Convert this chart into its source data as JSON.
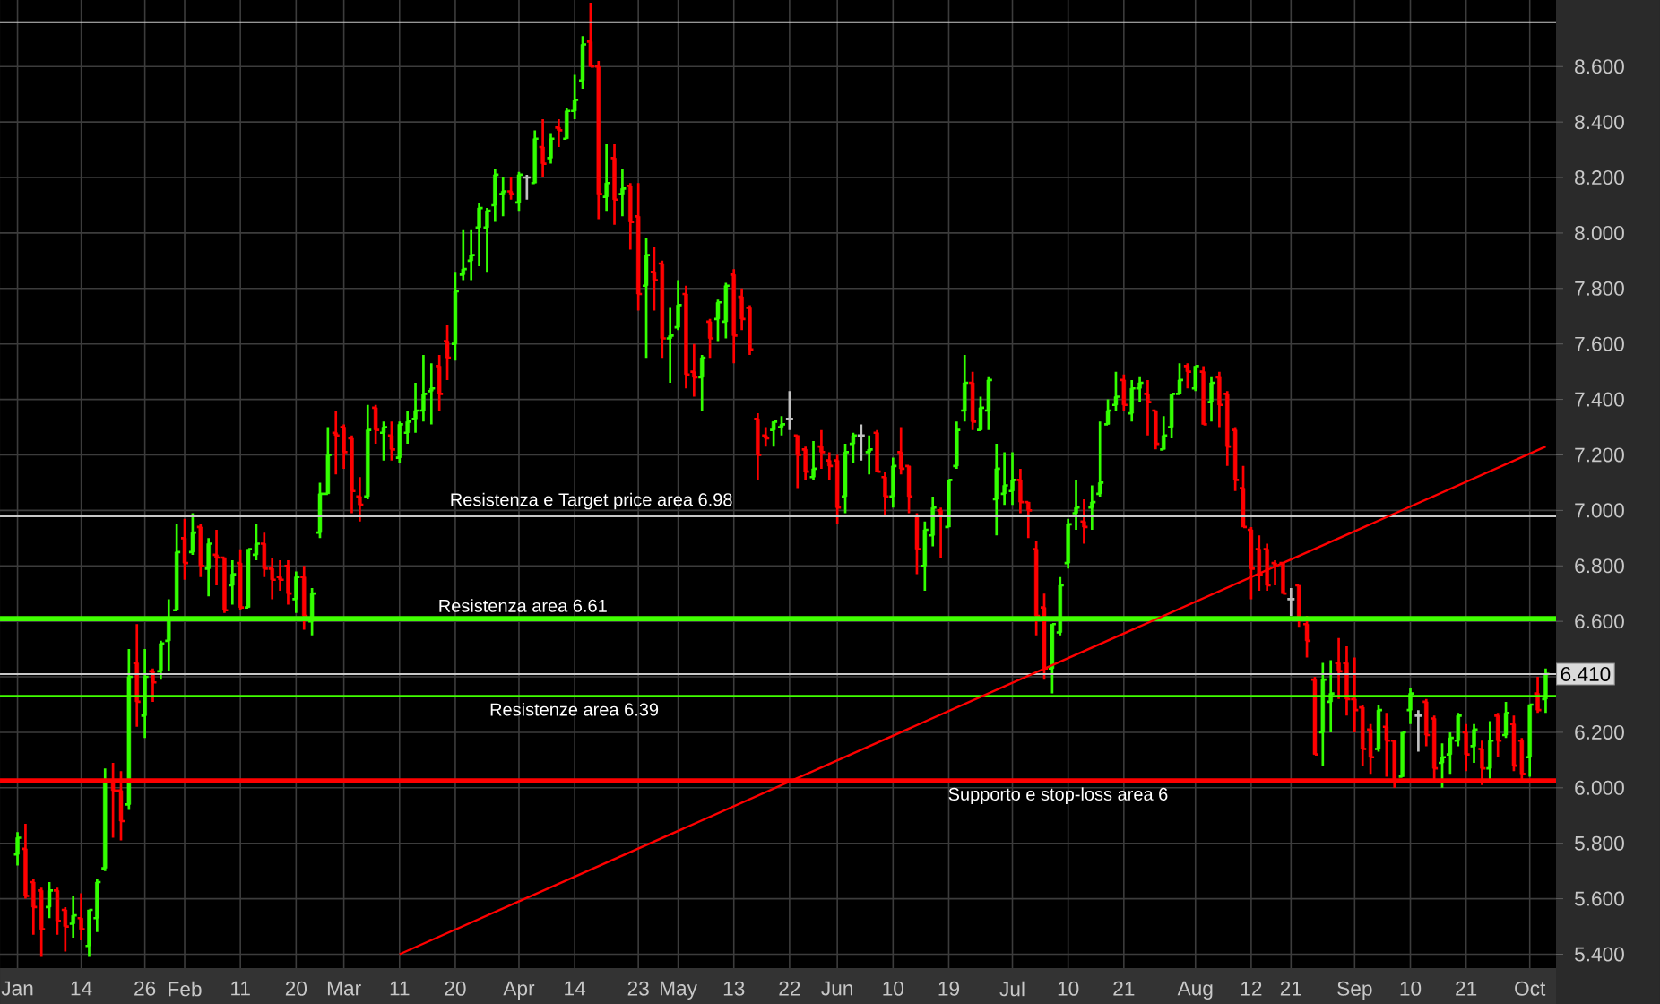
{
  "chart_data": {
    "type": "candlestick",
    "categories": [
      "Jan",
      null,
      null,
      null,
      null,
      null,
      null,
      null,
      "14",
      null,
      null,
      null,
      null,
      null,
      null,
      null,
      "26",
      null,
      null,
      null,
      null,
      "Feb",
      null,
      null,
      null,
      null,
      null,
      null,
      "11",
      null,
      null,
      null,
      null,
      null,
      null,
      "20",
      null,
      null,
      null,
      null,
      null,
      "Mar",
      null,
      null,
      null,
      null,
      null,
      null,
      "11",
      null,
      null,
      null,
      null,
      null,
      null,
      "20",
      null,
      null,
      null,
      null,
      null,
      null,
      null,
      "Apr",
      null,
      null,
      null,
      null,
      null,
      null,
      "14",
      null,
      null,
      null,
      null,
      null,
      null,
      null,
      "23",
      null,
      null,
      null,
      null,
      "May",
      null,
      null,
      null,
      null,
      null,
      null,
      "13",
      null,
      null,
      null,
      null,
      null,
      null,
      "22",
      null,
      null,
      null,
      null,
      null,
      "Jun",
      null,
      null,
      null,
      null,
      null,
      null,
      "10",
      null,
      null,
      null,
      null,
      null,
      null,
      "19",
      null,
      null,
      null,
      null,
      null,
      null,
      null,
      "Jul",
      null,
      null,
      null,
      null,
      null,
      null,
      "10",
      null,
      null,
      null,
      null,
      null,
      null,
      "21",
      null,
      null,
      null,
      null,
      null,
      null,
      null,
      null,
      "Aug",
      null,
      null,
      null,
      null,
      null,
      null,
      "12",
      null,
      null,
      null,
      null,
      "21",
      null,
      null,
      null,
      null,
      null,
      null,
      null,
      "Sep",
      null,
      null,
      null,
      null,
      null,
      null,
      "10",
      null,
      null,
      null,
      null,
      null,
      null,
      "21",
      null,
      null,
      null,
      null,
      null,
      null,
      null,
      "Oct",
      null,
      null
    ],
    "ohlc": [
      [
        5.76,
        5.84,
        5.72,
        5.82
      ],
      [
        5.78,
        5.87,
        5.6,
        5.61
      ],
      [
        5.66,
        5.67,
        5.47,
        5.57
      ],
      [
        5.63,
        5.64,
        5.39,
        5.49
      ],
      [
        5.57,
        5.66,
        5.53,
        5.63
      ],
      [
        5.63,
        5.64,
        5.47,
        5.52
      ],
      [
        5.56,
        5.57,
        5.41,
        5.5
      ],
      [
        5.51,
        5.61,
        5.46,
        5.54
      ],
      [
        5.53,
        5.62,
        5.45,
        5.49
      ],
      [
        5.43,
        5.56,
        5.39,
        5.56
      ],
      [
        5.53,
        5.67,
        5.48,
        5.66
      ],
      [
        5.71,
        6.07,
        5.7,
        6.02
      ],
      [
        6.02,
        6.09,
        5.82,
        5.99
      ],
      [
        5.99,
        6.06,
        5.81,
        5.88
      ],
      [
        5.94,
        6.5,
        5.92,
        6.4
      ],
      [
        6.45,
        6.59,
        6.22,
        6.31
      ],
      [
        6.26,
        6.5,
        6.18,
        6.4
      ],
      [
        6.42,
        6.43,
        6.31,
        6.38
      ],
      [
        6.42,
        6.53,
        6.39,
        6.52
      ],
      [
        6.53,
        6.68,
        6.42,
        6.61
      ],
      [
        6.64,
        6.95,
        6.64,
        6.85
      ],
      [
        6.9,
        6.97,
        6.75,
        6.81
      ],
      [
        6.85,
        6.99,
        6.84,
        6.92
      ],
      [
        6.94,
        6.95,
        6.76,
        6.8
      ],
      [
        6.79,
        6.9,
        6.69,
        6.88
      ],
      [
        6.84,
        6.93,
        6.73,
        6.83
      ],
      [
        6.83,
        6.83,
        6.63,
        6.64
      ],
      [
        6.73,
        6.82,
        6.66,
        6.77
      ],
      [
        6.81,
        6.86,
        6.64,
        6.65
      ],
      [
        6.65,
        6.86,
        6.65,
        6.86
      ],
      [
        6.84,
        6.95,
        6.82,
        6.88
      ],
      [
        6.88,
        6.92,
        6.76,
        6.79
      ],
      [
        6.79,
        6.83,
        6.68,
        6.75
      ],
      [
        6.76,
        6.82,
        6.71,
        6.75
      ],
      [
        6.8,
        6.82,
        6.66,
        6.7
      ],
      [
        6.68,
        6.78,
        6.63,
        6.76
      ],
      [
        6.76,
        6.8,
        6.57,
        6.62
      ],
      [
        6.6,
        6.72,
        6.55,
        6.7
      ],
      [
        6.92,
        7.1,
        6.9,
        7.06
      ],
      [
        7.06,
        7.3,
        7.06,
        7.2
      ],
      [
        7.28,
        7.36,
        7.13,
        7.27
      ],
      [
        7.3,
        7.31,
        7.15,
        7.21
      ],
      [
        7.26,
        7.27,
        6.99,
        7.07
      ],
      [
        7.05,
        7.12,
        6.96,
        7.02
      ],
      [
        7.05,
        7.38,
        7.04,
        7.29
      ],
      [
        7.37,
        7.38,
        7.24,
        7.29
      ],
      [
        7.28,
        7.32,
        7.18,
        7.3
      ],
      [
        7.27,
        7.32,
        7.18,
        7.22
      ],
      [
        7.19,
        7.32,
        7.17,
        7.31
      ],
      [
        7.28,
        7.36,
        7.24,
        7.32
      ],
      [
        7.33,
        7.46,
        7.28,
        7.36
      ],
      [
        7.36,
        7.56,
        7.32,
        7.42
      ],
      [
        7.43,
        7.53,
        7.31,
        7.44
      ],
      [
        7.52,
        7.56,
        7.36,
        7.42
      ],
      [
        7.61,
        7.67,
        7.47,
        7.55
      ],
      [
        7.6,
        7.86,
        7.54,
        7.79
      ],
      [
        7.85,
        8.01,
        7.83,
        7.87
      ],
      [
        7.9,
        8.01,
        7.83,
        7.92
      ],
      [
        8.02,
        8.11,
        7.88,
        8.09
      ],
      [
        8.02,
        8.09,
        7.86,
        8.08
      ],
      [
        8.1,
        8.23,
        8.04,
        8.21
      ],
      [
        8.14,
        8.2,
        8.06,
        8.15
      ],
      [
        8.15,
        8.2,
        8.12,
        8.14
      ],
      [
        8.11,
        8.22,
        8.08,
        8.21
      ],
      [
        8.2,
        8.21,
        8.12,
        8.2
      ],
      [
        8.18,
        8.37,
        8.18,
        8.34
      ],
      [
        8.31,
        8.41,
        8.2,
        8.25
      ],
      [
        8.27,
        8.36,
        8.25,
        8.34
      ],
      [
        8.38,
        8.41,
        8.31,
        8.37
      ],
      [
        8.34,
        8.45,
        8.34,
        8.44
      ],
      [
        8.44,
        8.57,
        8.41,
        8.48
      ],
      [
        8.55,
        8.71,
        8.52,
        8.68
      ],
      [
        8.69,
        8.83,
        8.6,
        8.6
      ],
      [
        8.6,
        8.62,
        8.05,
        8.14
      ],
      [
        8.13,
        8.32,
        8.08,
        8.18
      ],
      [
        8.27,
        8.32,
        8.03,
        8.12
      ],
      [
        8.14,
        8.23,
        8.06,
        8.16
      ],
      [
        8.17,
        8.18,
        7.94,
        8.04
      ],
      [
        8.06,
        8.18,
        7.72,
        7.78
      ],
      [
        7.81,
        7.98,
        7.55,
        7.92
      ],
      [
        7.86,
        7.95,
        7.72,
        7.83
      ],
      [
        7.89,
        7.9,
        7.55,
        7.62
      ],
      [
        7.62,
        7.73,
        7.46,
        7.63
      ],
      [
        7.66,
        7.83,
        7.65,
        7.74
      ],
      [
        7.78,
        7.81,
        7.44,
        7.49
      ],
      [
        7.5,
        7.6,
        7.41,
        7.48
      ],
      [
        7.48,
        7.56,
        7.36,
        7.55
      ],
      [
        7.68,
        7.69,
        7.55,
        7.62
      ],
      [
        7.69,
        7.76,
        7.61,
        7.75
      ],
      [
        7.68,
        7.82,
        7.62,
        7.81
      ],
      [
        7.85,
        7.87,
        7.53,
        7.63
      ],
      [
        7.77,
        7.8,
        7.65,
        7.69
      ],
      [
        7.73,
        7.74,
        7.56,
        7.58
      ],
      [
        7.33,
        7.35,
        7.11,
        7.2
      ],
      [
        7.27,
        7.3,
        7.23,
        7.26
      ],
      [
        7.29,
        7.32,
        7.23,
        7.32
      ],
      [
        7.3,
        7.34,
        7.27,
        7.31
      ],
      [
        7.33,
        7.43,
        7.29,
        7.33
      ],
      [
        7.27,
        7.27,
        7.08,
        7.2
      ],
      [
        7.22,
        7.23,
        7.11,
        7.14
      ],
      [
        7.12,
        7.25,
        7.11,
        7.15
      ],
      [
        7.23,
        7.29,
        7.15,
        7.21
      ],
      [
        7.18,
        7.21,
        7.11,
        7.16
      ],
      [
        7.18,
        7.2,
        6.95,
        7.01
      ],
      [
        7.05,
        7.24,
        6.99,
        7.21
      ],
      [
        7.24,
        7.28,
        7.17,
        7.27
      ],
      [
        7.27,
        7.31,
        7.18,
        7.27
      ],
      [
        7.21,
        7.27,
        7.13,
        7.22
      ],
      [
        7.28,
        7.29,
        7.14,
        7.14
      ],
      [
        7.12,
        7.14,
        6.98,
        7.05
      ],
      [
        7.05,
        7.19,
        7.01,
        7.16
      ],
      [
        7.21,
        7.3,
        7.13,
        7.15
      ],
      [
        7.16,
        7.16,
        6.99,
        7.05
      ],
      [
        6.98,
        6.99,
        6.77,
        6.86
      ],
      [
        6.8,
        6.96,
        6.71,
        6.93
      ],
      [
        6.91,
        7.05,
        6.87,
        7.01
      ],
      [
        7.0,
        7.01,
        6.83,
        6.98
      ],
      [
        6.94,
        7.11,
        6.94,
        7.11
      ],
      [
        7.16,
        7.32,
        7.15,
        7.29
      ],
      [
        7.36,
        7.56,
        7.32,
        7.46
      ],
      [
        7.46,
        7.5,
        7.29,
        7.32
      ],
      [
        7.29,
        7.41,
        7.29,
        7.37
      ],
      [
        7.36,
        7.48,
        7.29,
        7.47
      ],
      [
        7.04,
        7.24,
        6.91,
        7.15
      ],
      [
        7.06,
        7.21,
        7.02,
        7.09
      ],
      [
        7.07,
        7.21,
        7.02,
        7.11
      ],
      [
        7.11,
        7.15,
        6.99,
        7.03
      ],
      [
        7.03,
        7.03,
        6.9,
        7.0
      ],
      [
        6.86,
        6.89,
        6.55,
        6.62
      ],
      [
        6.65,
        6.7,
        6.39,
        6.43
      ],
      [
        6.43,
        6.59,
        6.34,
        6.59
      ],
      [
        6.56,
        6.76,
        6.55,
        6.73
      ],
      [
        6.81,
        6.97,
        6.79,
        6.95
      ],
      [
        6.99,
        7.11,
        6.93,
        7.01
      ],
      [
        6.96,
        7.04,
        6.88,
        6.94
      ],
      [
        7.01,
        7.09,
        6.93,
        7.03
      ],
      [
        7.06,
        7.32,
        7.05,
        7.1
      ],
      [
        7.31,
        7.4,
        7.31,
        7.36
      ],
      [
        7.38,
        7.5,
        7.36,
        7.41
      ],
      [
        7.47,
        7.49,
        7.36,
        7.38
      ],
      [
        7.35,
        7.47,
        7.32,
        7.44
      ],
      [
        7.44,
        7.48,
        7.39,
        7.46
      ],
      [
        7.42,
        7.47,
        7.27,
        7.39
      ],
      [
        7.36,
        7.36,
        7.22,
        7.24
      ],
      [
        7.22,
        7.34,
        7.22,
        7.27
      ],
      [
        7.3,
        7.42,
        7.26,
        7.42
      ],
      [
        7.42,
        7.53,
        7.42,
        7.47
      ],
      [
        7.52,
        7.53,
        7.44,
        7.5
      ],
      [
        7.44,
        7.52,
        7.43,
        7.52
      ],
      [
        7.5,
        7.52,
        7.31,
        7.31
      ],
      [
        7.39,
        7.48,
        7.32,
        7.46
      ],
      [
        7.48,
        7.5,
        7.3,
        7.38
      ],
      [
        7.42,
        7.43,
        7.16,
        7.23
      ],
      [
        7.29,
        7.3,
        7.07,
        7.11
      ],
      [
        7.08,
        7.16,
        6.94,
        6.94
      ],
      [
        6.93,
        6.94,
        6.68,
        6.79
      ],
      [
        6.86,
        6.91,
        6.71,
        6.77
      ],
      [
        6.86,
        6.88,
        6.71,
        6.73
      ],
      [
        6.81,
        6.82,
        6.73,
        6.8
      ],
      [
        6.81,
        6.81,
        6.7,
        6.7
      ],
      [
        6.68,
        6.72,
        6.62,
        6.68
      ],
      [
        6.73,
        6.73,
        6.58,
        6.61
      ],
      [
        6.59,
        6.62,
        6.47,
        6.53
      ],
      [
        6.39,
        6.4,
        6.12,
        6.12
      ],
      [
        6.2,
        6.45,
        6.08,
        6.39
      ],
      [
        6.31,
        6.46,
        6.2,
        6.34
      ],
      [
        6.45,
        6.54,
        6.32,
        6.42
      ],
      [
        6.45,
        6.51,
        6.26,
        6.32
      ],
      [
        6.32,
        6.47,
        6.2,
        6.28
      ],
      [
        6.29,
        6.3,
        6.08,
        6.14
      ],
      [
        6.21,
        6.23,
        6.05,
        6.11
      ],
      [
        6.14,
        6.3,
        6.13,
        6.28
      ],
      [
        6.22,
        6.27,
        6.04,
        6.17
      ],
      [
        6.17,
        6.17,
        6.0,
        6.02
      ],
      [
        6.04,
        6.2,
        6.04,
        6.2
      ],
      [
        6.28,
        6.36,
        6.23,
        6.34
      ],
      [
        6.26,
        6.28,
        6.13,
        6.26
      ],
      [
        6.31,
        6.32,
        6.15,
        6.19
      ],
      [
        6.25,
        6.26,
        6.02,
        6.07
      ],
      [
        6.09,
        6.16,
        6.0,
        6.11
      ],
      [
        6.12,
        6.2,
        6.05,
        6.18
      ],
      [
        6.17,
        6.27,
        6.15,
        6.26
      ],
      [
        6.2,
        6.23,
        6.06,
        6.12
      ],
      [
        6.15,
        6.23,
        6.09,
        6.21
      ],
      [
        6.14,
        6.17,
        6.01,
        6.07
      ],
      [
        6.07,
        6.24,
        6.02,
        6.17
      ],
      [
        6.26,
        6.27,
        6.11,
        6.17
      ],
      [
        6.19,
        6.31,
        6.18,
        6.27
      ],
      [
        6.23,
        6.26,
        6.06,
        6.08
      ],
      [
        6.17,
        6.18,
        6.02,
        6.05
      ],
      [
        6.11,
        6.3,
        6.04,
        6.3
      ],
      [
        6.34,
        6.4,
        6.27,
        6.28
      ],
      [
        6.32,
        6.43,
        6.27,
        6.41
      ]
    ],
    "colors": [
      "#33ff00",
      "#ff0000",
      "#ff0000",
      "#ff0000",
      "#33ff00",
      "#ff0000",
      "#ff0000",
      "#33ff00",
      "#ff0000",
      "#33ff00",
      "#33ff00",
      "#33ff00",
      "#ff0000",
      "#ff0000",
      "#33ff00",
      "#ff0000",
      "#33ff00",
      "#ff0000",
      "#33ff00",
      "#33ff00",
      "#33ff00",
      "#ff0000",
      "#33ff00",
      "#ff0000",
      "#33ff00",
      "#ff0000",
      "#ff0000",
      "#33ff00",
      "#ff0000",
      "#33ff00",
      "#33ff00",
      "#ff0000",
      "#ff0000",
      "#ff0000",
      "#ff0000",
      "#33ff00",
      "#ff0000",
      "#33ff00",
      "#33ff00",
      "#33ff00",
      "#ff0000",
      "#ff0000",
      "#ff0000",
      "#ff0000",
      "#33ff00",
      "#ff0000",
      "#33ff00",
      "#ff0000",
      "#33ff00",
      "#33ff00",
      "#33ff00",
      "#33ff00",
      "#33ff00",
      "#ff0000",
      "#ff0000",
      "#33ff00",
      "#33ff00",
      "#33ff00",
      "#33ff00",
      "#33ff00",
      "#33ff00",
      "#33ff00",
      "#ff0000",
      "#33ff00",
      "#c0c0c0",
      "#33ff00",
      "#ff0000",
      "#33ff00",
      "#ff0000",
      "#33ff00",
      "#33ff00",
      "#33ff00",
      "#ff0000",
      "#ff0000",
      "#33ff00",
      "#ff0000",
      "#33ff00",
      "#ff0000",
      "#ff0000",
      "#33ff00",
      "#ff0000",
      "#ff0000",
      "#33ff00",
      "#33ff00",
      "#ff0000",
      "#ff0000",
      "#33ff00",
      "#ff0000",
      "#33ff00",
      "#33ff00",
      "#ff0000",
      "#ff0000",
      "#ff0000",
      "#ff0000",
      "#ff0000",
      "#33ff00",
      "#33ff00",
      "#c0c0c0",
      "#ff0000",
      "#ff0000",
      "#33ff00",
      "#ff0000",
      "#ff0000",
      "#ff0000",
      "#33ff00",
      "#33ff00",
      "#c0c0c0",
      "#33ff00",
      "#ff0000",
      "#ff0000",
      "#33ff00",
      "#ff0000",
      "#ff0000",
      "#ff0000",
      "#33ff00",
      "#33ff00",
      "#ff0000",
      "#33ff00",
      "#33ff00",
      "#33ff00",
      "#ff0000",
      "#33ff00",
      "#33ff00",
      "#33ff00",
      "#33ff00",
      "#33ff00",
      "#ff0000",
      "#ff0000",
      "#ff0000",
      "#ff0000",
      "#33ff00",
      "#33ff00",
      "#33ff00",
      "#33ff00",
      "#ff0000",
      "#33ff00",
      "#33ff00",
      "#33ff00",
      "#33ff00",
      "#ff0000",
      "#33ff00",
      "#33ff00",
      "#ff0000",
      "#ff0000",
      "#33ff00",
      "#33ff00",
      "#33ff00",
      "#ff0000",
      "#33ff00",
      "#ff0000",
      "#33ff00",
      "#ff0000",
      "#ff0000",
      "#ff0000",
      "#ff0000",
      "#ff0000",
      "#ff0000",
      "#ff0000",
      "#ff0000",
      "#ff0000",
      "#c0c0c0",
      "#ff0000",
      "#ff0000",
      "#ff0000",
      "#33ff00",
      "#33ff00",
      "#ff0000",
      "#ff0000",
      "#ff0000",
      "#ff0000",
      "#ff0000",
      "#33ff00",
      "#ff0000",
      "#ff0000",
      "#33ff00",
      "#33ff00",
      "#c0c0c0",
      "#ff0000",
      "#ff0000",
      "#33ff00",
      "#33ff00",
      "#33ff00",
      "#ff0000",
      "#33ff00",
      "#ff0000",
      "#33ff00",
      "#ff0000",
      "#33ff00",
      "#ff0000",
      "#ff0000",
      "#33ff00",
      "#ff0000",
      "#33ff00"
    ],
    "ylim": [
      5.35,
      8.84
    ],
    "yticks": [
      {
        "value": 5.4,
        "label": "5.400"
      },
      {
        "value": 5.6,
        "label": "5.600"
      },
      {
        "value": 5.8,
        "label": "5.800"
      },
      {
        "value": 6.0,
        "label": "6.000"
      },
      {
        "value": 6.2,
        "label": "6.200"
      },
      {
        "value": 6.4,
        "label": null
      },
      {
        "value": 6.6,
        "label": "6.600"
      },
      {
        "value": 6.8,
        "label": "6.800"
      },
      {
        "value": 7.0,
        "label": "7.000"
      },
      {
        "value": 7.2,
        "label": "7.200"
      },
      {
        "value": 7.4,
        "label": "7.400"
      },
      {
        "value": 7.6,
        "label": "7.600"
      },
      {
        "value": 7.8,
        "label": "7.800"
      },
      {
        "value": 8.0,
        "label": "8.000"
      },
      {
        "value": 8.2,
        "label": "8.200"
      },
      {
        "value": 8.4,
        "label": "8.400"
      },
      {
        "value": 8.6,
        "label": "8.600"
      }
    ],
    "grid": true,
    "series": [
      {
        "type": "line",
        "color": "#ff0000",
        "values": [
          null,
          null,
          null,
          null,
          null,
          null,
          null,
          null,
          null,
          null,
          null,
          null,
          null,
          null,
          null,
          null,
          null,
          null,
          null,
          null,
          null,
          null,
          null,
          null,
          null,
          null,
          null,
          null,
          null,
          null,
          null,
          null,
          null,
          null,
          null,
          null,
          null,
          null,
          null,
          null,
          null,
          null,
          null,
          null,
          null,
          null,
          null,
          null,
          5.4,
          null,
          null,
          null,
          null,
          null,
          null,
          null,
          null,
          null,
          null,
          null,
          null,
          null,
          null,
          null,
          null,
          null,
          null,
          null,
          null,
          null,
          null,
          null,
          null,
          null,
          null,
          null,
          null,
          null,
          null,
          null,
          null,
          null,
          null,
          null,
          null,
          null,
          null,
          null,
          null,
          null,
          null,
          null,
          null,
          null,
          null,
          null,
          null,
          null,
          null,
          null,
          null,
          null,
          null,
          null,
          null,
          null,
          null,
          null,
          null,
          null,
          null,
          null,
          null,
          null,
          null,
          null,
          null,
          null,
          null,
          null,
          null,
          null,
          null,
          null,
          null,
          null,
          null,
          null,
          null,
          null,
          null,
          null,
          null,
          null,
          null,
          null,
          null,
          null,
          null,
          null,
          null,
          null,
          null,
          null,
          null,
          null,
          null,
          null,
          null,
          null,
          null,
          null,
          null,
          null,
          null,
          null,
          null,
          null,
          null,
          null,
          null,
          null,
          null,
          null,
          null,
          null,
          null,
          null,
          null,
          null,
          null,
          null,
          null,
          null,
          null,
          null,
          null,
          null,
          null,
          null,
          null,
          null,
          null,
          null,
          null,
          null,
          null,
          null,
          null,
          null,
          null,
          null,
          7.23
        ]
      }
    ],
    "ref_lines": [
      {
        "axis": "y",
        "value": 8.76,
        "color": "#c8c8c8"
      },
      {
        "axis": "y",
        "value": 6.98,
        "label": "Resistenza e Target price area 6.98",
        "color": "#c8c8c8"
      },
      {
        "axis": "y",
        "value": 6.61,
        "label": "Resistenza area 6.61",
        "color": "#40ff00"
      },
      {
        "axis": "y",
        "value": 6.41,
        "label": "6.410",
        "color": "#c8c8c8"
      },
      {
        "axis": "y",
        "value": 6.33,
        "label": "Resistenze area 6.39",
        "color": "#40ff00"
      },
      {
        "axis": "y",
        "value": 6.025,
        "label": "Supporto e stop-loss area 6",
        "color": "#ff0000"
      }
    ]
  }
}
